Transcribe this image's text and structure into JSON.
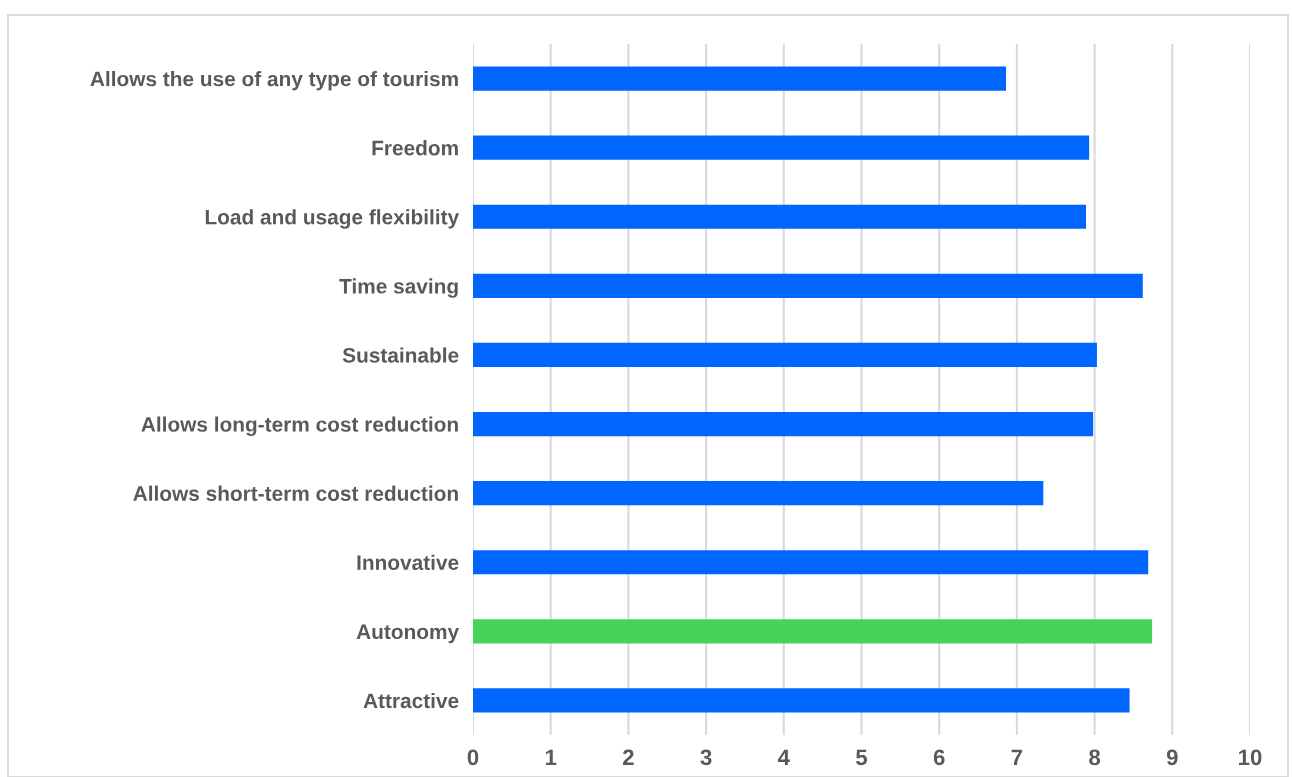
{
  "chart_data": {
    "type": "bar",
    "orientation": "horizontal",
    "categories": [
      "Allows the use of any type of tourism",
      "Freedom",
      "Load and usage flexibility",
      "Time saving",
      "Sustainable",
      "Allows long-term cost reduction",
      "Allows short-term cost reduction",
      "Innovative",
      "Autonomy",
      "Attractive"
    ],
    "values": [
      6.86,
      7.93,
      7.89,
      8.62,
      8.03,
      7.98,
      7.34,
      8.69,
      8.74,
      8.45
    ],
    "colors": [
      "#0066ff",
      "#0066ff",
      "#0066ff",
      "#0066ff",
      "#0066ff",
      "#0066ff",
      "#0066ff",
      "#0066ff",
      "#46d35a",
      "#0066ff"
    ],
    "xlim": [
      0,
      10
    ],
    "xticks": [
      0,
      1,
      2,
      3,
      4,
      5,
      6,
      7,
      8,
      9,
      10
    ],
    "grid": "x",
    "legend": false
  }
}
